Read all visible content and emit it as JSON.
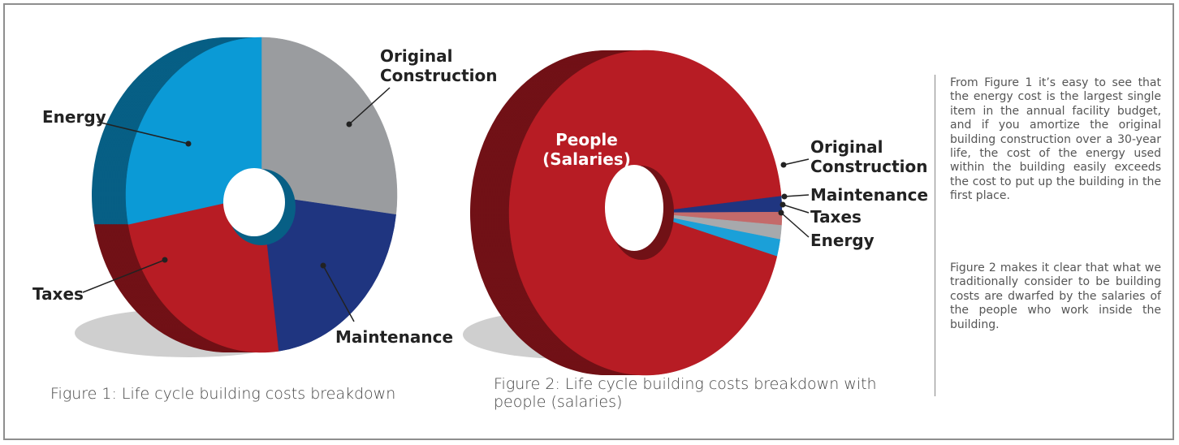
{
  "chart_data": [
    {
      "type": "pie",
      "categories": [
        "Original Construction",
        "Maintenance",
        "Taxes",
        "Energy"
      ],
      "values": [
        27,
        21,
        24,
        28
      ],
      "colors": [
        "#9a9c9f",
        "#1f3580",
        "#b71c24",
        "#0b9ad6"
      ],
      "caption": "Figure 1: Life cycle building costs breakdown"
    },
    {
      "type": "pie",
      "categories": [
        "Original Construction",
        "Maintenance",
        "Taxes",
        "Energy",
        "People (Salaries)"
      ],
      "values": [
        1.6,
        1.3,
        1.4,
        1.7,
        94
      ],
      "colors": [
        "#1f3580",
        "#c46a6a",
        "#a7a9ac",
        "#1ba0d8",
        "#b71c24"
      ],
      "caption": "Figure 2: Life cycle building costs breakdown with people (salaries)"
    }
  ],
  "sidebar": {
    "paragraphs": [
      "From Figure 1 it’s easy to see that the energy cost is the largest single item in the annual facility budget, and if you amortize the original building construction over a 30-year life, the cost of the energy used within the building easily exceeds the cost to put up the building in the first place.",
      "Figure 2 makes it clear that what we traditionally consider to be building costs are dwarfed by the salaries of the people who work inside the building."
    ]
  }
}
